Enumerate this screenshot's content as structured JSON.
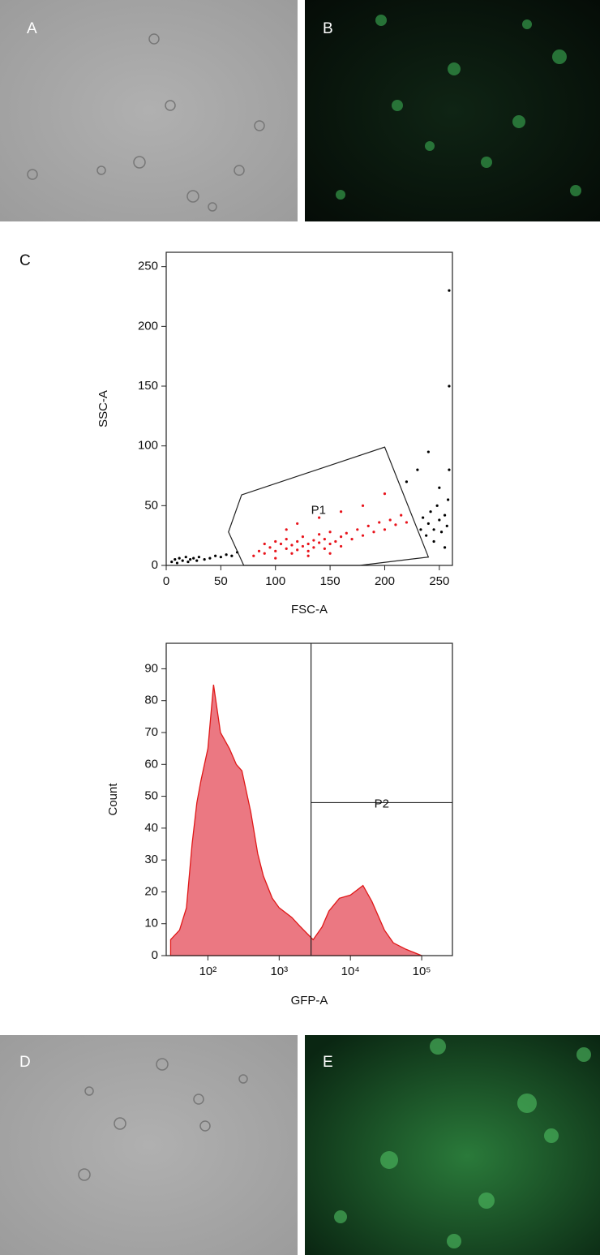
{
  "panel_labels": [
    "A",
    "B",
    "C",
    "D",
    "E"
  ],
  "chart_data": [
    {
      "type": "scatter",
      "xlabel": "FSC-A",
      "ylabel": "SSC-A",
      "xlim": [
        0,
        262
      ],
      "ylim": [
        0,
        262
      ],
      "xticks": [
        0,
        50,
        100,
        150,
        200,
        250
      ],
      "yticks": [
        0,
        50,
        100,
        150,
        200,
        250
      ],
      "series": [
        {
          "color": "#e8141c",
          "x": [
            80,
            85,
            90,
            95,
            100,
            100,
            105,
            110,
            110,
            115,
            115,
            120,
            120,
            125,
            125,
            130,
            130,
            135,
            135,
            140,
            140,
            145,
            145,
            150,
            150,
            155,
            160,
            160,
            165,
            170,
            175,
            180,
            185,
            190,
            195,
            200,
            205,
            210,
            215,
            220,
            120,
            140,
            160,
            180,
            200,
            110,
            130,
            150,
            100,
            90
          ],
          "values": [
            8,
            12,
            10,
            15,
            12,
            20,
            18,
            14,
            22,
            17,
            10,
            20,
            13,
            16,
            24,
            18,
            12,
            21,
            15,
            19,
            26,
            14,
            22,
            18,
            28,
            20,
            24,
            16,
            27,
            22,
            30,
            25,
            33,
            28,
            36,
            30,
            38,
            34,
            42,
            36,
            35,
            40,
            45,
            50,
            60,
            30,
            8,
            10,
            6,
            18
          ]
        },
        {
          "color": "#000000",
          "x": [
            5,
            8,
            10,
            12,
            15,
            18,
            20,
            22,
            25,
            28,
            30,
            35,
            40,
            45,
            50,
            55,
            60,
            65,
            233,
            235,
            238,
            240,
            242,
            245,
            248,
            250,
            252,
            255,
            257,
            258,
            259,
            259,
            259,
            220,
            230,
            240,
            250,
            245,
            255
          ],
          "values": [
            3,
            5,
            2,
            6,
            4,
            7,
            3,
            5,
            6,
            4,
            7,
            5,
            6,
            8,
            7,
            9,
            8,
            11,
            30,
            40,
            25,
            35,
            45,
            30,
            50,
            38,
            28,
            42,
            33,
            55,
            80,
            150,
            230,
            70,
            80,
            95,
            65,
            20,
            15
          ]
        }
      ],
      "gate": {
        "label": "P1",
        "x": [
          69,
          200,
          240,
          177,
          71,
          57
        ],
        "y": [
          59,
          99,
          7,
          0,
          0,
          28
        ]
      }
    },
    {
      "type": "area",
      "xlabel": "GFP-A",
      "ylabel": "Count",
      "xscale": "log",
      "xlim": [
        26,
        270000
      ],
      "ylim": [
        0,
        98
      ],
      "xticks": [
        {
          "value": 100,
          "label": "10²"
        },
        {
          "value": 1000,
          "label": "10³"
        },
        {
          "value": 10000,
          "label": "10⁴"
        },
        {
          "value": 100000,
          "label": "10⁵"
        }
      ],
      "yticks": [
        0,
        10,
        20,
        30,
        40,
        50,
        60,
        70,
        80,
        90
      ],
      "color": "#e8606c",
      "edge_color": "#e01818",
      "x": [
        30,
        40,
        50,
        60,
        70,
        80,
        100,
        120,
        150,
        200,
        250,
        300,
        400,
        500,
        600,
        800,
        1000,
        1500,
        2000,
        3000,
        4000,
        5000,
        7000,
        10000,
        15000,
        20000,
        30000,
        40000,
        60000,
        100000
      ],
      "values": [
        5,
        8,
        15,
        35,
        48,
        55,
        65,
        85,
        70,
        65,
        60,
        58,
        45,
        32,
        25,
        18,
        15,
        12,
        9,
        5,
        9,
        14,
        18,
        19,
        22,
        17,
        8,
        4,
        2,
        0
      ],
      "gate": {
        "label": "P2",
        "xmin": 2800,
        "y": 48
      }
    }
  ]
}
